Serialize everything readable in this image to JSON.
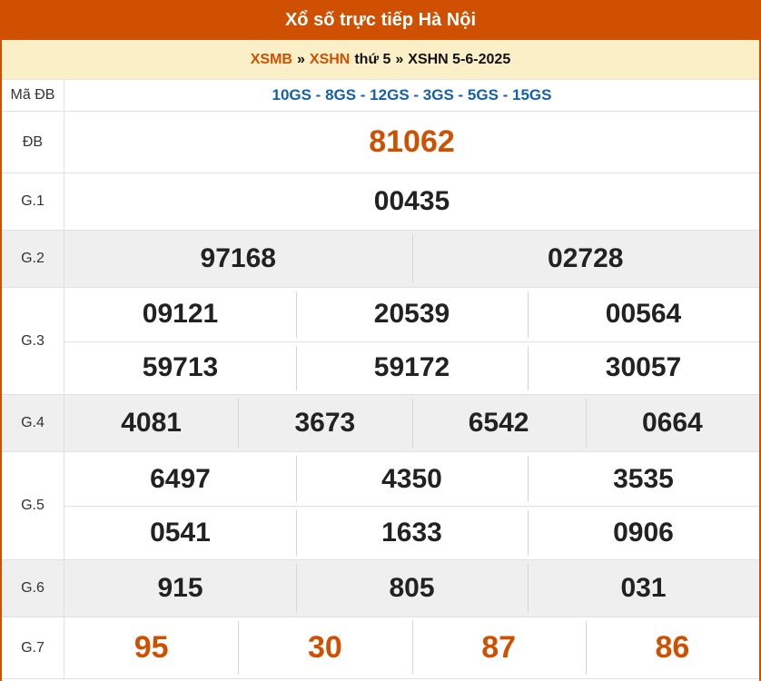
{
  "title": "Xổ số trực tiếp Hà Nội",
  "breadcrumb": {
    "link1": "XSMB",
    "sep": "»",
    "link2": "XSHN",
    "day": "thứ 5",
    "current": "XSHN 5-6-2025"
  },
  "colors": {
    "accent": "#cf5000",
    "breadcrumb_bg": "#fbefc8",
    "code_blue": "#1560a8"
  },
  "rows": [
    {
      "label": "Mã ĐB",
      "values": [
        "10GS - 8GS - 12GS - 3GS - 5GS - 15GS"
      ]
    },
    {
      "label": "ĐB",
      "values": [
        "81062"
      ]
    },
    {
      "label": "G.1",
      "values": [
        "00435"
      ]
    },
    {
      "label": "G.2",
      "values": [
        "97168",
        "02728"
      ]
    },
    {
      "label": "G.3",
      "values": [
        "09121",
        "20539",
        "00564",
        "59713",
        "59172",
        "30057"
      ]
    },
    {
      "label": "G.4",
      "values": [
        "4081",
        "3673",
        "6542",
        "0664"
      ]
    },
    {
      "label": "G.5",
      "values": [
        "6497",
        "4350",
        "3535",
        "0541",
        "1633",
        "0906"
      ]
    },
    {
      "label": "G.6",
      "values": [
        "915",
        "805",
        "031"
      ]
    },
    {
      "label": "G.7",
      "values": [
        "95",
        "30",
        "87",
        "86"
      ]
    }
  ]
}
